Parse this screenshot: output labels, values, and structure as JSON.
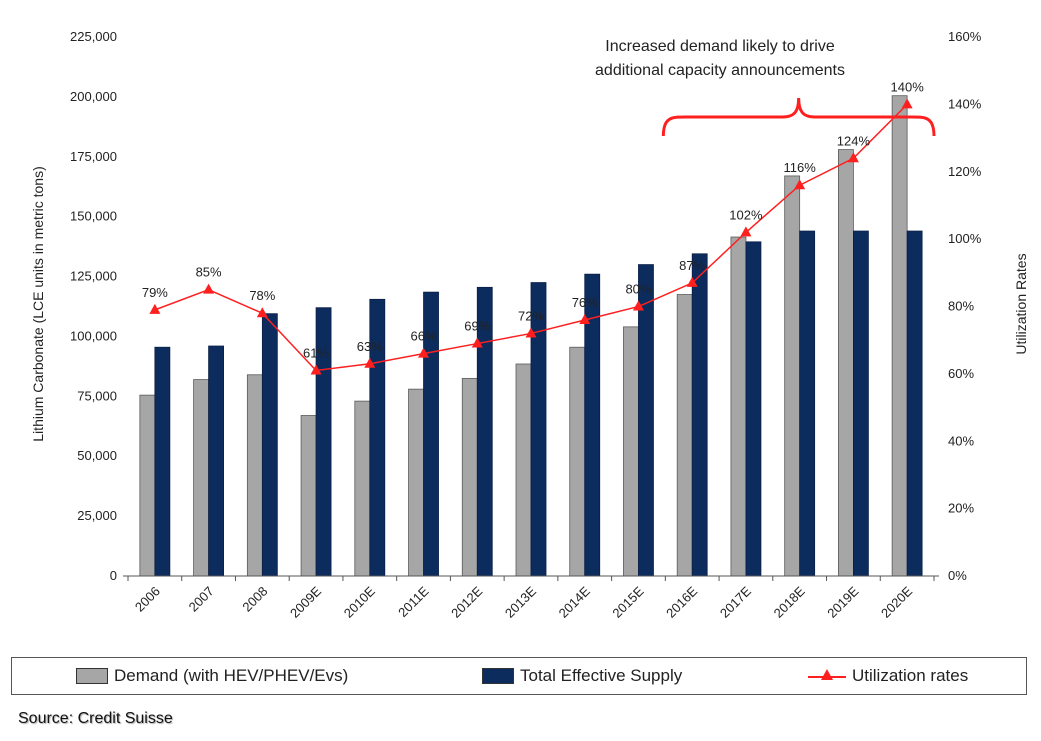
{
  "chart_data": {
    "type": "bar",
    "categories": [
      "2006",
      "2007",
      "2008",
      "2009E",
      "2010E",
      "2011E",
      "2012E",
      "2013E",
      "2014E",
      "2015E",
      "2016E",
      "2017E",
      "2018E",
      "2019E",
      "2020E"
    ],
    "series": [
      {
        "name": "Demand (with HEV/PHEV/Evs)",
        "type": "bar",
        "axis": "left",
        "color": "#a6a6a6",
        "values": [
          75500,
          82000,
          84000,
          67000,
          73000,
          78000,
          82500,
          88500,
          95500,
          104000,
          117500,
          141500,
          167000,
          178000,
          200500
        ]
      },
      {
        "name": "Total Effective Supply",
        "type": "bar",
        "axis": "left",
        "color": "#0d2c5e",
        "values": [
          95500,
          96000,
          109500,
          112000,
          115500,
          118500,
          120500,
          122500,
          126000,
          130000,
          134500,
          139500,
          144000,
          144000,
          144000
        ]
      },
      {
        "name": "Utilization rates",
        "type": "line",
        "axis": "right",
        "color": "#ff1f1f",
        "marker": "triangle",
        "values": [
          79,
          85,
          78,
          61,
          63,
          66,
          69,
          72,
          76,
          80,
          87,
          102,
          116,
          124,
          140
        ],
        "labels": [
          "79%",
          "85%",
          "78%",
          "61%",
          "63%",
          "66%",
          "69%",
          "72%",
          "76%",
          "80%",
          "87%",
          "102%",
          "116%",
          "124%",
          "140%"
        ]
      }
    ],
    "ylabel": "Lithium Carbonate (LCE units in metric tons)",
    "y2label": "Utilization Rates",
    "ylim": [
      0,
      225000
    ],
    "y2lim": [
      0,
      160
    ],
    "yticks": [
      "0",
      "25,000",
      "50,000",
      "75,000",
      "100,000",
      "125,000",
      "150,000",
      "175,000",
      "200,000",
      "225,000"
    ],
    "y2ticks": [
      "0%",
      "20%",
      "40%",
      "60%",
      "80%",
      "100%",
      "120%",
      "140%",
      "160%"
    ],
    "annotation": [
      "Increased demand likely to drive",
      "additional capacity announcements"
    ],
    "annotation_range": [
      "2016E",
      "2020E"
    ],
    "legend_position": "bottom",
    "grid": false
  },
  "legend": {
    "demand": "Demand (with HEV/PHEV/Evs)",
    "supply": "Total Effective Supply",
    "util": "Utilization rates"
  },
  "source": "Source: Credit Suisse"
}
